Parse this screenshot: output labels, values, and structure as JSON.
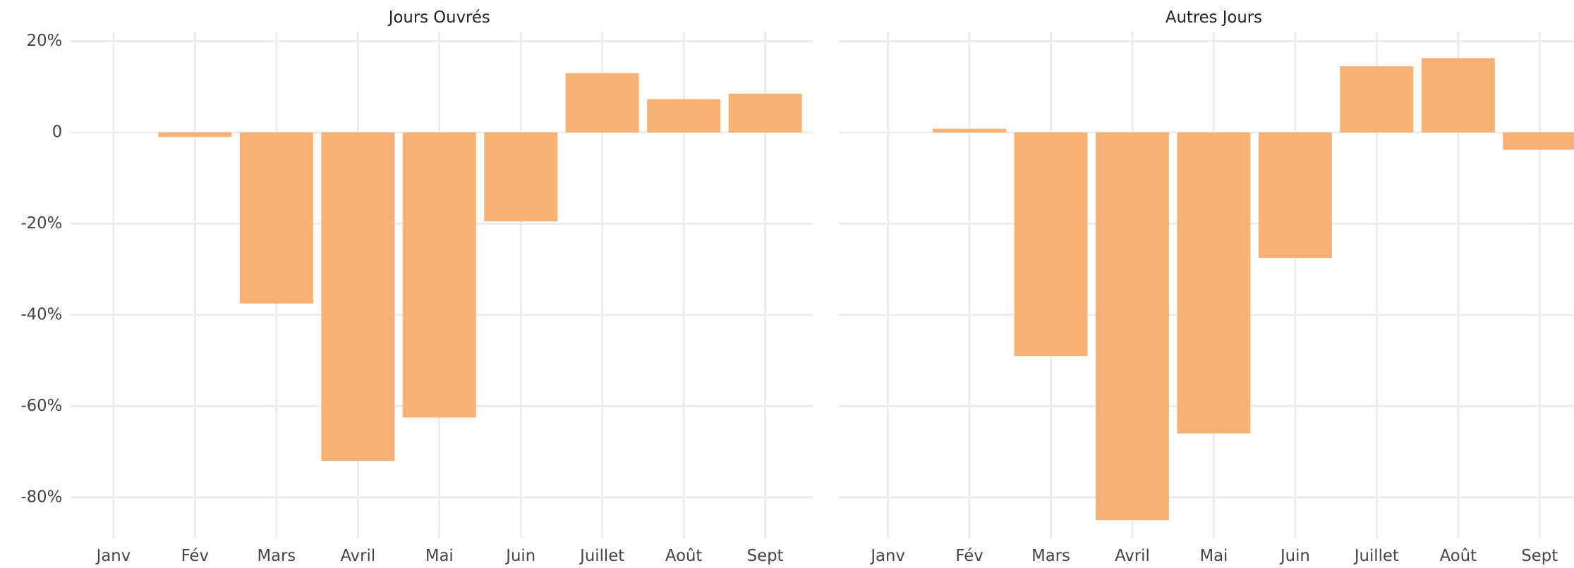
{
  "chart_data": [
    {
      "type": "bar",
      "title": "Jours Ouvrés",
      "categories": [
        "Janv",
        "Fév",
        "Mars",
        "Avril",
        "Mai",
        "Juin",
        "Juillet",
        "Août",
        "Sept"
      ],
      "values": [
        0,
        -1,
        -37.5,
        -72,
        -62.5,
        -19.5,
        13,
        7.3,
        8.5
      ],
      "color": "#f9b073",
      "ylim": [
        -89,
        22
      ],
      "yticks": [
        {
          "value": 20,
          "label": "20%"
        },
        0,
        {
          "value": -20,
          "label": "-20%"
        },
        {
          "value": -40,
          "label": "-40%"
        },
        {
          "value": -60,
          "label": "-60%"
        },
        {
          "value": -80,
          "label": "-80%"
        }
      ],
      "grid": true
    },
    {
      "type": "bar",
      "title": "Autres Jours",
      "categories": [
        "Janv",
        "Fév",
        "Mars",
        "Avril",
        "Mai",
        "Juin",
        "Juillet",
        "Août",
        "Sept"
      ],
      "values": [
        0,
        0.8,
        -49,
        -85,
        -66,
        -27.5,
        14.5,
        16.3,
        -3.8
      ],
      "color": "#f9b073",
      "ylim": [
        -89,
        22
      ],
      "yticks": [
        {
          "value": 20,
          "label": "20%"
        },
        0,
        {
          "value": -20,
          "label": "-20%"
        },
        {
          "value": -40,
          "label": "-40%"
        },
        {
          "value": -60,
          "label": "-60%"
        },
        {
          "value": -80,
          "label": "-80%"
        }
      ],
      "grid": true
    }
  ]
}
